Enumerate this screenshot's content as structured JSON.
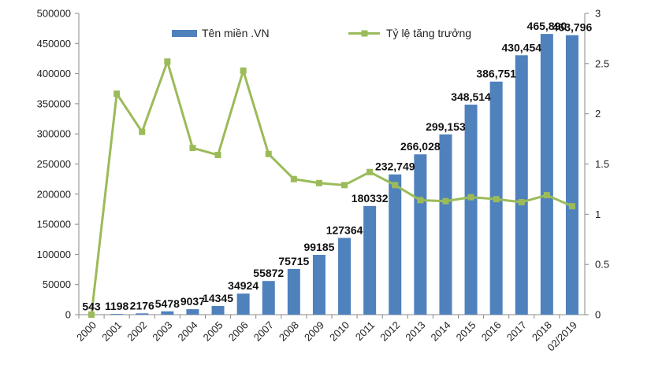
{
  "chart_data": {
    "type": "bar",
    "categories": [
      "2000",
      "2001",
      "2002",
      "2003",
      "2004",
      "2005",
      "2006",
      "2007",
      "2008",
      "2009",
      "2010",
      "2011",
      "2012",
      "2013",
      "2014",
      "2015",
      "2016",
      "2017",
      "2018",
      "02/2019"
    ],
    "series": [
      {
        "name": "Tên miền .VN",
        "type": "bar",
        "axis": "left",
        "color": "#4f81bd",
        "values": [
          543,
          1198,
          2176,
          5478,
          9037,
          14345,
          34924,
          55872,
          75715,
          99185,
          127364,
          180332,
          232749,
          266028,
          299153,
          348514,
          386751,
          430454,
          465890,
          463796
        ],
        "labels": [
          "543",
          "1198",
          "2176",
          "5478",
          "9037",
          "14345",
          "34924",
          "55872",
          "75715",
          "99185",
          "127364",
          "180332",
          "232,749",
          "266,028",
          "299,153",
          "348,514",
          "386,751",
          "430,454",
          "465,890",
          "463,796"
        ]
      },
      {
        "name": "Tỷ lệ tăng trưởng",
        "type": "line",
        "axis": "right",
        "color": "#9bbb59",
        "values": [
          0,
          2.2,
          1.82,
          2.52,
          1.66,
          1.59,
          2.43,
          1.6,
          1.35,
          1.31,
          1.29,
          1.42,
          1.29,
          1.14,
          1.13,
          1.17,
          1.15,
          1.12,
          1.19,
          1.08
        ]
      }
    ],
    "y_left": {
      "min": 0,
      "max": 500000,
      "ticks": [
        "0",
        "50000",
        "100000",
        "150000",
        "200000",
        "250000",
        "300000",
        "350000",
        "400000",
        "450000",
        "500000"
      ]
    },
    "y_right": {
      "min": 0,
      "max": 3,
      "ticks": [
        "0",
        "0.5",
        "1",
        "1.5",
        "2",
        "2.5",
        "3"
      ]
    },
    "title": "",
    "xlabel": "",
    "ylabel": "",
    "grid": false,
    "legend": "top"
  }
}
